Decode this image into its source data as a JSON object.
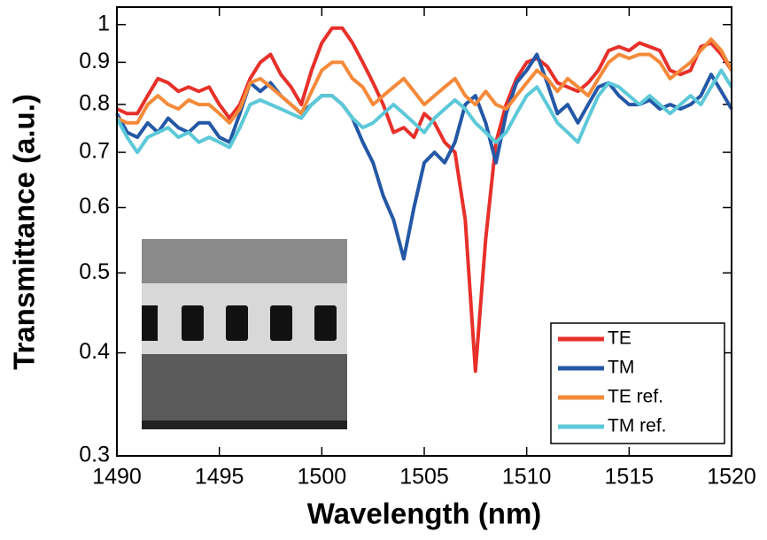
{
  "chart_data": {
    "type": "line",
    "x_label": "Wavelength (nm)",
    "y_label": "Transmittance (a.u.)",
    "log_y": true,
    "legend_position": "lower right",
    "xlim": [
      1490,
      1520
    ],
    "xticks": [
      1490,
      1495,
      1500,
      1505,
      1510,
      1515,
      1520
    ],
    "ylim": [
      0.3,
      1.05
    ],
    "yticks": [
      0.3,
      0.4,
      0.5,
      0.6,
      0.7,
      0.8,
      0.9,
      1
    ],
    "x": [
      1490,
      1490.5,
      1491,
      1491.5,
      1492,
      1492.5,
      1493,
      1493.5,
      1494,
      1494.5,
      1495,
      1495.5,
      1496,
      1496.5,
      1497,
      1497.5,
      1498,
      1498.5,
      1499,
      1499.5,
      1500,
      1500.5,
      1501,
      1501.5,
      1502,
      1502.5,
      1503,
      1503.5,
      1504,
      1504.5,
      1505,
      1505.5,
      1506,
      1506.5,
      1507,
      1507.5,
      1508,
      1508.5,
      1509,
      1509.5,
      1510,
      1510.5,
      1511,
      1511.5,
      1512,
      1512.5,
      1513,
      1513.5,
      1514,
      1514.5,
      1515,
      1515.5,
      1516,
      1516.5,
      1517,
      1517.5,
      1518,
      1518.5,
      1519,
      1519.5,
      1520
    ],
    "series": [
      {
        "name": "TE",
        "color": "#e8302a",
        "values": [
          0.79,
          0.78,
          0.78,
          0.82,
          0.86,
          0.85,
          0.83,
          0.84,
          0.83,
          0.84,
          0.8,
          0.77,
          0.8,
          0.86,
          0.9,
          0.92,
          0.87,
          0.84,
          0.8,
          0.88,
          0.95,
          0.99,
          0.99,
          0.95,
          0.9,
          0.85,
          0.8,
          0.74,
          0.75,
          0.73,
          0.78,
          0.76,
          0.72,
          0.7,
          0.58,
          0.38,
          0.55,
          0.72,
          0.8,
          0.86,
          0.9,
          0.91,
          0.89,
          0.85,
          0.84,
          0.83,
          0.85,
          0.88,
          0.93,
          0.94,
          0.93,
          0.95,
          0.94,
          0.93,
          0.88,
          0.87,
          0.88,
          0.94,
          0.95,
          0.92,
          0.88
        ]
      },
      {
        "name": "TM",
        "color": "#2458a6",
        "values": [
          0.78,
          0.74,
          0.73,
          0.76,
          0.74,
          0.77,
          0.75,
          0.74,
          0.76,
          0.76,
          0.73,
          0.72,
          0.78,
          0.85,
          0.83,
          0.85,
          0.82,
          0.8,
          0.78,
          0.8,
          0.82,
          0.82,
          0.8,
          0.77,
          0.72,
          0.68,
          0.62,
          0.58,
          0.52,
          0.6,
          0.68,
          0.7,
          0.68,
          0.72,
          0.8,
          0.82,
          0.76,
          0.68,
          0.78,
          0.85,
          0.88,
          0.92,
          0.85,
          0.78,
          0.8,
          0.76,
          0.8,
          0.84,
          0.85,
          0.82,
          0.8,
          0.8,
          0.81,
          0.79,
          0.8,
          0.79,
          0.8,
          0.82,
          0.87,
          0.83,
          0.79
        ]
      },
      {
        "name": "TE ref.",
        "color": "#f58a3a",
        "values": [
          0.77,
          0.76,
          0.76,
          0.8,
          0.82,
          0.8,
          0.79,
          0.81,
          0.8,
          0.8,
          0.78,
          0.76,
          0.79,
          0.85,
          0.86,
          0.84,
          0.82,
          0.8,
          0.78,
          0.83,
          0.88,
          0.9,
          0.9,
          0.86,
          0.84,
          0.8,
          0.82,
          0.84,
          0.86,
          0.83,
          0.8,
          0.82,
          0.84,
          0.86,
          0.82,
          0.8,
          0.83,
          0.8,
          0.79,
          0.82,
          0.85,
          0.88,
          0.86,
          0.83,
          0.86,
          0.84,
          0.82,
          0.86,
          0.9,
          0.92,
          0.91,
          0.92,
          0.92,
          0.9,
          0.86,
          0.88,
          0.9,
          0.93,
          0.96,
          0.93,
          0.88
        ]
      },
      {
        "name": "TM ref.",
        "color": "#5cc8d8",
        "values": [
          0.77,
          0.73,
          0.7,
          0.73,
          0.74,
          0.75,
          0.73,
          0.74,
          0.72,
          0.73,
          0.72,
          0.71,
          0.75,
          0.8,
          0.81,
          0.8,
          0.79,
          0.78,
          0.77,
          0.8,
          0.82,
          0.82,
          0.8,
          0.77,
          0.75,
          0.76,
          0.78,
          0.8,
          0.78,
          0.76,
          0.74,
          0.77,
          0.79,
          0.81,
          0.79,
          0.76,
          0.74,
          0.72,
          0.74,
          0.78,
          0.82,
          0.84,
          0.8,
          0.76,
          0.74,
          0.72,
          0.77,
          0.82,
          0.85,
          0.84,
          0.82,
          0.8,
          0.82,
          0.8,
          0.78,
          0.8,
          0.82,
          0.8,
          0.84,
          0.88,
          0.84
        ]
      }
    ]
  }
}
